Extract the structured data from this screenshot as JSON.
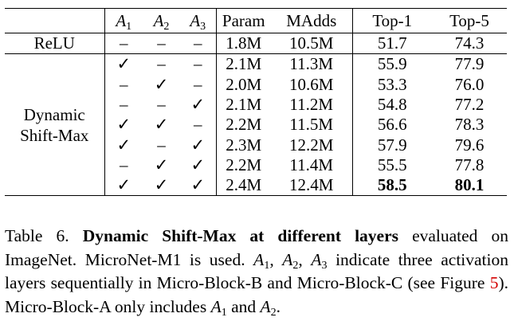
{
  "table": {
    "headers": {
      "method": "",
      "a1": {
        "base": "A",
        "sub": "1"
      },
      "a2": {
        "base": "A",
        "sub": "2"
      },
      "a3": {
        "base": "A",
        "sub": "3"
      },
      "param": "Param",
      "madds": "MAdds",
      "top1": "Top-1",
      "top5": "Top-5"
    },
    "relu": {
      "method": "ReLU",
      "a1": "–",
      "a2": "–",
      "a3": "–",
      "param": "1.8M",
      "madds": "10.5M",
      "top1": "51.7",
      "top5": "74.3"
    },
    "group_label": [
      "Dynamic",
      "Shift-Max"
    ],
    "rows": [
      {
        "a1": "✓",
        "a2": "–",
        "a3": "–",
        "param": "2.1M",
        "madds": "11.3M",
        "top1": "55.9",
        "top5": "77.9"
      },
      {
        "a1": "–",
        "a2": "✓",
        "a3": "–",
        "param": "2.0M",
        "madds": "10.6M",
        "top1": "53.3",
        "top5": "76.0"
      },
      {
        "a1": "–",
        "a2": "–",
        "a3": "✓",
        "param": "2.1M",
        "madds": "11.2M",
        "top1": "54.8",
        "top5": "77.2"
      },
      {
        "a1": "✓",
        "a2": "✓",
        "a3": "–",
        "param": "2.2M",
        "madds": "11.5M",
        "top1": "56.6",
        "top5": "78.3"
      },
      {
        "a1": "✓",
        "a2": "–",
        "a3": "✓",
        "param": "2.3M",
        "madds": "12.2M",
        "top1": "57.9",
        "top5": "79.6"
      },
      {
        "a1": "–",
        "a2": "✓",
        "a3": "✓",
        "param": "2.2M",
        "madds": "11.4M",
        "top1": "55.5",
        "top5": "77.8"
      },
      {
        "a1": "✓",
        "a2": "✓",
        "a3": "✓",
        "param": "2.4M",
        "madds": "12.4M",
        "top1": "58.5",
        "top5": "80.1"
      }
    ]
  },
  "caption": {
    "label": "Table 6.",
    "title": "Dynamic Shift-Max at different layers",
    "text_1": " evaluated on ImageNet. MicroNet-M1 is used. ",
    "text_2": " indicate three activation layers sequentially in Micro-Block-B and Micro-Block-C (see Figure ",
    "figure_ref": "5",
    "text_3": "). Micro-Block-A only includes ",
    "and_word": " and ",
    "text_4": ".",
    "comma": ", ",
    "var": "A",
    "sub1": "1",
    "sub2": "2",
    "sub3": "3"
  }
}
